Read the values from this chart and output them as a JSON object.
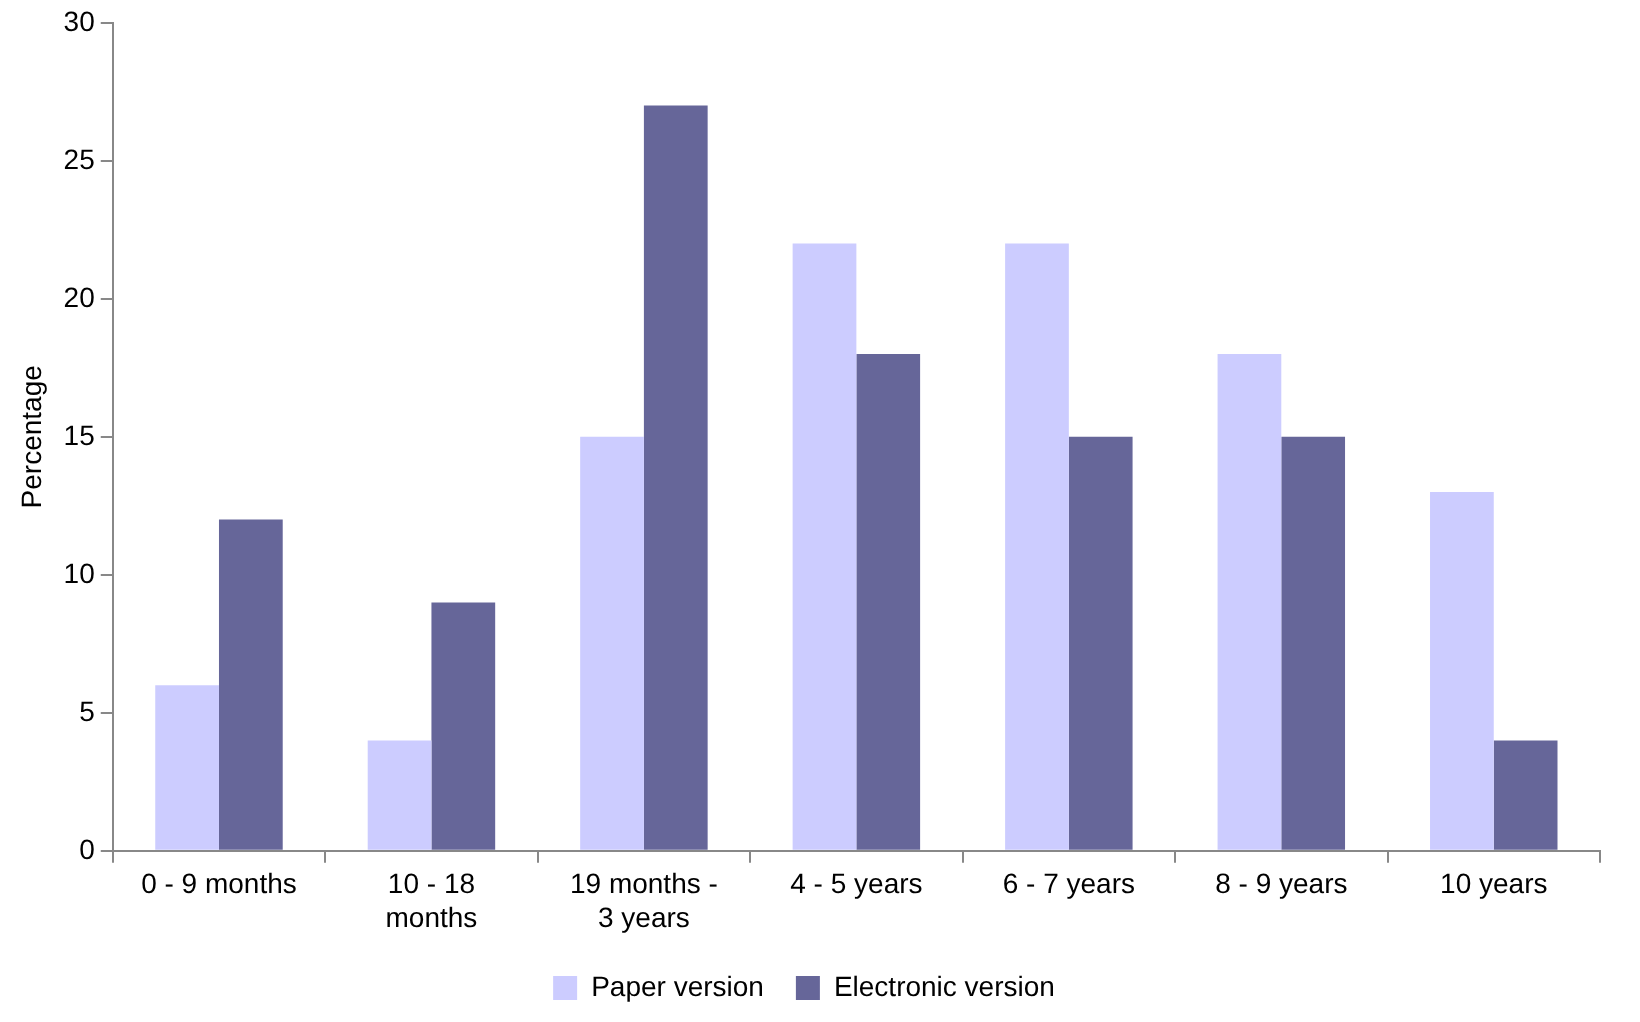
{
  "chart_data": {
    "type": "bar",
    "ylabel": "Percentage",
    "categories": [
      "0 - 9 months",
      "10 - 18 months",
      "19 months - 3 years",
      "4 - 5 years",
      "6 - 7 years",
      "8 - 9 years",
      "10 years"
    ],
    "series": [
      {
        "name": "Paper version",
        "color": "#ccccff",
        "values": [
          6,
          4,
          15,
          22,
          22,
          18,
          13
        ]
      },
      {
        "name": "Electronic version",
        "color": "#666699",
        "values": [
          12,
          9,
          27,
          18,
          15,
          15,
          4
        ]
      }
    ],
    "ylim": [
      0,
      30
    ],
    "yticks": [
      0,
      5,
      10,
      15,
      20,
      25,
      30
    ],
    "grid": false,
    "legend": "bottom"
  }
}
